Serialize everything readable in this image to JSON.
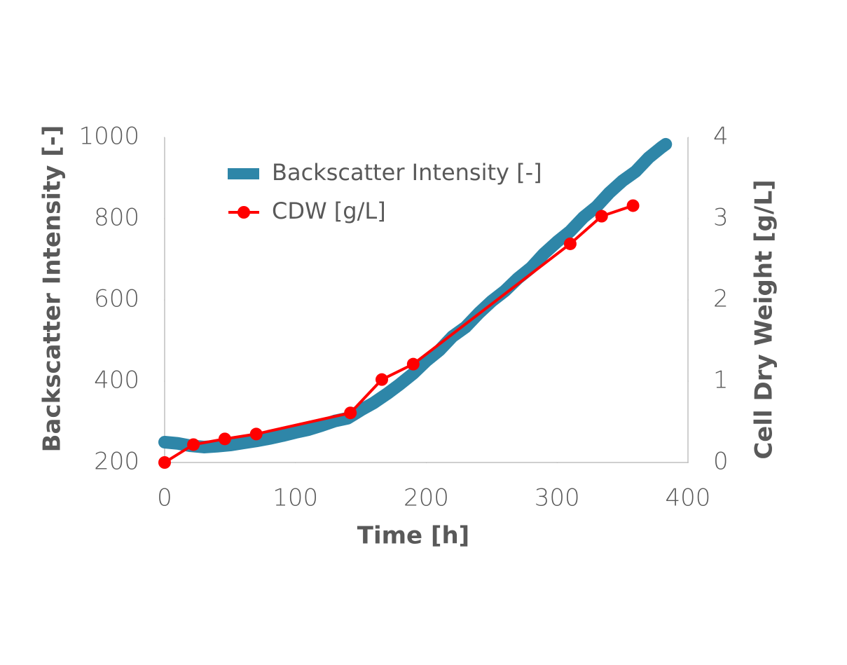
{
  "chart_data": {
    "type": "line",
    "xlabel": "Time [h]",
    "ylabel": "Backscatter Intensity  [-]",
    "y2label": "Cell Dry Weight   [g/L]",
    "xlim": [
      0,
      400
    ],
    "xticks": [
      0,
      100,
      200,
      300,
      400
    ],
    "ylim": [
      200,
      1000
    ],
    "yticks": [
      200,
      400,
      600,
      800,
      1000
    ],
    "y2lim": [
      0,
      4
    ],
    "y2ticks": [
      0,
      1,
      2,
      3,
      4
    ],
    "grid": false,
    "legend": "top-left",
    "series": [
      {
        "name": "Backscatter Intensity [-]",
        "color": "#2e86a8",
        "axis": "y",
        "x": [
          0,
          10,
          20,
          30,
          40,
          50,
          60,
          70,
          80,
          90,
          100,
          110,
          120,
          130,
          140,
          150,
          160,
          170,
          180,
          190,
          200,
          210,
          220,
          230,
          240,
          250,
          260,
          270,
          280,
          290,
          300,
          310,
          320,
          330,
          340,
          350,
          360,
          370,
          380,
          383
        ],
        "values": [
          250,
          247,
          241,
          238,
          240,
          243,
          248,
          253,
          259,
          266,
          274,
          281,
          291,
          302,
          309,
          329,
          347,
          369,
          393,
          419,
          450,
          476,
          510,
          533,
          567,
          597,
          622,
          653,
          679,
          714,
          743,
          769,
          803,
          829,
          864,
          893,
          916,
          950,
          976,
          983
        ]
      },
      {
        "name": "CDW [g/L]",
        "color": "#ff0000",
        "axis": "y2",
        "x": [
          0,
          22,
          46,
          70,
          142,
          166,
          190,
          310,
          334,
          358
        ],
        "values": [
          0,
          0.22,
          0.29,
          0.35,
          0.61,
          1.02,
          1.21,
          2.69,
          3.03,
          3.16
        ]
      }
    ]
  }
}
